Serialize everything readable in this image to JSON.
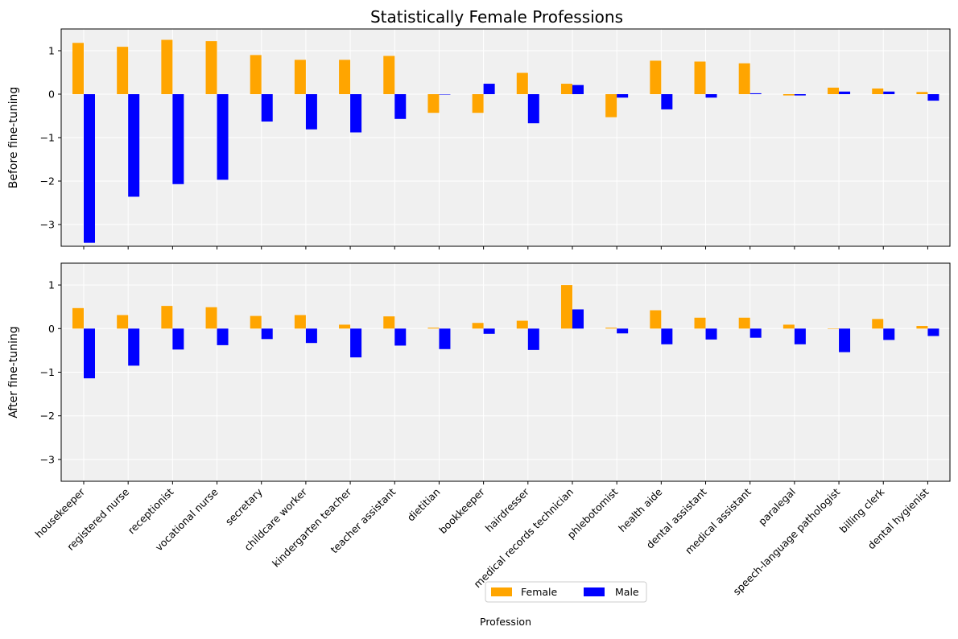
{
  "chart_data": {
    "type": "bar",
    "title": "Statistically Female Professions",
    "xlabel": "Profession",
    "categories": [
      "housekeeper",
      "registered nurse",
      "receptionist",
      "vocational nurse",
      "secretary",
      "childcare worker",
      "kindergarten teacher",
      "teacher assistant",
      "dietitian",
      "bookkeeper",
      "hairdresser",
      "medical records technician",
      "phlebotomist",
      "health aide",
      "dental assistant",
      "medical assistant",
      "paralegal",
      "speech-language pathologist",
      "billing clerk",
      "dental hygienist"
    ],
    "ylim": [
      -3.5,
      1.5
    ],
    "yticks": [
      1,
      0,
      -1,
      -2,
      -3
    ],
    "ytick_labels": [
      "1",
      "0",
      "−1",
      "−2",
      "−3"
    ],
    "grid": true,
    "legend_position": "bottom-center",
    "colors": {
      "female": "#ffa500",
      "male": "#0000ff",
      "plot_bg": "#f0f0f0",
      "grid": "#ffffff"
    },
    "legend": [
      {
        "name": "Female",
        "color": "#ffa500"
      },
      {
        "name": "Male",
        "color": "#0000ff"
      }
    ],
    "panels": [
      {
        "ylabel": "Before fine-tuning",
        "series": [
          {
            "name": "Female",
            "values": [
              1.18,
              1.09,
              1.25,
              1.22,
              0.9,
              0.79,
              0.79,
              0.88,
              -0.43,
              -0.43,
              0.49,
              0.24,
              -0.53,
              0.77,
              0.75,
              0.71,
              -0.03,
              0.15,
              0.13,
              0.05
            ]
          },
          {
            "name": "Male",
            "values": [
              -3.42,
              -2.36,
              -2.07,
              -1.97,
              -0.63,
              -0.81,
              -0.88,
              -0.57,
              0.0,
              0.24,
              -0.67,
              0.21,
              -0.08,
              -0.35,
              -0.08,
              0.02,
              -0.03,
              0.06,
              0.06,
              -0.15
            ]
          }
        ]
      },
      {
        "ylabel": "After fine-tuning",
        "series": [
          {
            "name": "Female",
            "values": [
              0.47,
              0.31,
              0.52,
              0.49,
              0.29,
              0.31,
              0.09,
              0.28,
              0.02,
              0.13,
              0.18,
              1.0,
              0.02,
              0.42,
              0.25,
              0.25,
              0.09,
              -0.01,
              0.22,
              0.06
            ]
          },
          {
            "name": "Male",
            "values": [
              -1.14,
              -0.85,
              -0.48,
              -0.38,
              -0.24,
              -0.33,
              -0.66,
              -0.39,
              -0.47,
              -0.12,
              -0.49,
              0.44,
              -0.11,
              -0.36,
              -0.25,
              -0.21,
              -0.36,
              -0.54,
              -0.26,
              -0.17
            ]
          }
        ]
      }
    ]
  }
}
